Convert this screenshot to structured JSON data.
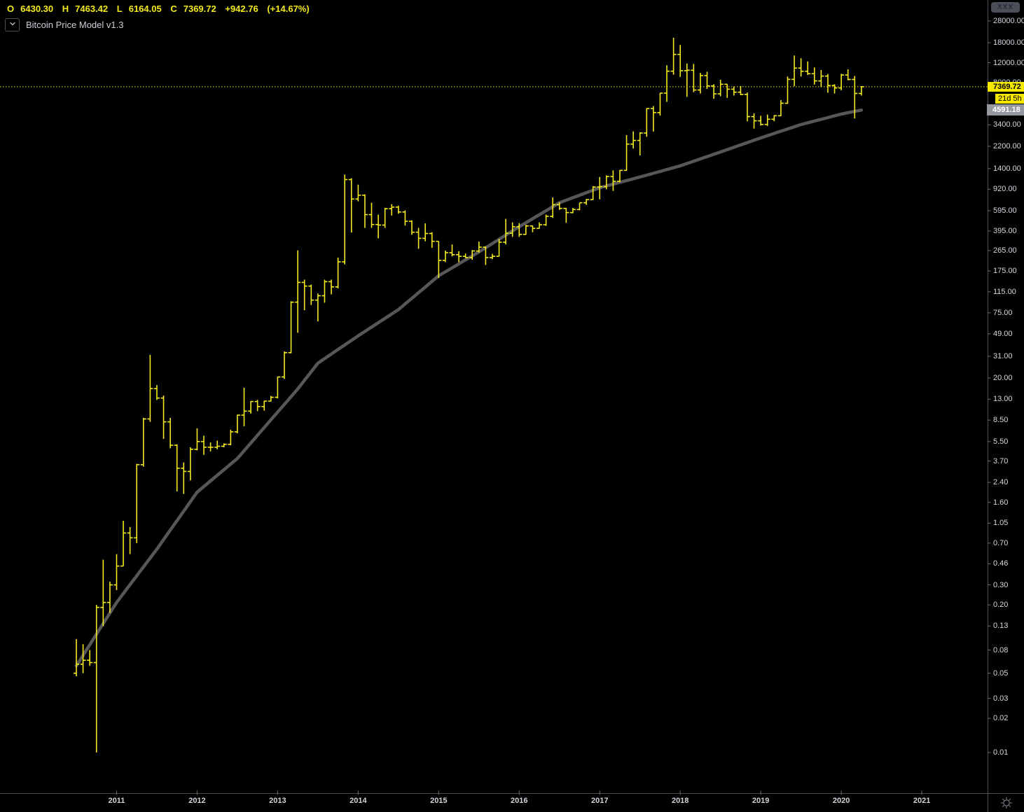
{
  "legend": {
    "open_label": "O",
    "open": "6430.30",
    "high_label": "H",
    "high": "7463.42",
    "low_label": "L",
    "low": "6164.05",
    "close_label": "C",
    "close": "7369.72",
    "change": "+942.76",
    "change_pct": "(+14.67%)"
  },
  "indicator": {
    "title": "Bitcoin Price Model v1.3"
  },
  "watermark": {
    "label": "XXX"
  },
  "price_axis": {
    "current_price_label": "7369.72",
    "countdown_label": "21d 5h",
    "model_price_label": "4591.18",
    "ticks": [
      {
        "label": "28000.00",
        "value": 28000
      },
      {
        "label": "18000.00",
        "value": 18000
      },
      {
        "label": "12000.00",
        "value": 12000
      },
      {
        "label": "8000.00",
        "value": 8000
      },
      {
        "label": "3400.00",
        "value": 3400
      },
      {
        "label": "2200.00",
        "value": 2200
      },
      {
        "label": "1400.00",
        "value": 1400
      },
      {
        "label": "920.00",
        "value": 920
      },
      {
        "label": "595.00",
        "value": 595
      },
      {
        "label": "395.00",
        "value": 395
      },
      {
        "label": "265.00",
        "value": 265
      },
      {
        "label": "175.00",
        "value": 175
      },
      {
        "label": "115.00",
        "value": 115
      },
      {
        "label": "75.00",
        "value": 75
      },
      {
        "label": "49.00",
        "value": 49
      },
      {
        "label": "31.00",
        "value": 31
      },
      {
        "label": "20.00",
        "value": 20
      },
      {
        "label": "13.00",
        "value": 13
      },
      {
        "label": "8.50",
        "value": 8.5
      },
      {
        "label": "5.50",
        "value": 5.5
      },
      {
        "label": "3.70",
        "value": 3.7
      },
      {
        "label": "2.40",
        "value": 2.4
      },
      {
        "label": "1.60",
        "value": 1.6
      },
      {
        "label": "1.05",
        "value": 1.05
      },
      {
        "label": "0.70",
        "value": 0.7
      },
      {
        "label": "0.46",
        "value": 0.46
      },
      {
        "label": "0.30",
        "value": 0.3
      },
      {
        "label": "0.20",
        "value": 0.2
      },
      {
        "label": "0.13",
        "value": 0.13
      },
      {
        "label": "0.08",
        "value": 0.08
      },
      {
        "label": "0.05",
        "value": 0.05
      },
      {
        "label": "0.03",
        "value": 0.03
      },
      {
        "label": "0.02",
        "value": 0.02
      },
      {
        "label": "0.01",
        "value": 0.01
      }
    ]
  },
  "time_axis": {
    "years": [
      "2011",
      "2012",
      "2013",
      "2014",
      "2015",
      "2016",
      "2017",
      "2018",
      "2019",
      "2020",
      "2021"
    ]
  },
  "colors": {
    "background": "#000000",
    "bar": "#f3ea1f",
    "current_price_line": "#f3ea1f",
    "model_line": "#57575a",
    "axis_line": "#4a4d55",
    "axis_text": "#d5d8df",
    "badge_yellow_bg": "#f6e900",
    "badge_gray_bg": "#95989f"
  },
  "chart_data": {
    "type": "ohlc-bar",
    "title": "Bitcoin Price Model v1.3",
    "y_scale": "log",
    "y_range": [
      0.005,
      40000
    ],
    "x_start_month": "2010-07",
    "x_end_month": "2020-04",
    "current_price": 7369.72,
    "current_bar_countdown": "21d 5h",
    "model_value_current": 4591.18,
    "bars_format": [
      "month",
      "open",
      "high",
      "low",
      "close"
    ],
    "bars": [
      [
        "2010-07",
        0.05,
        0.1,
        0.047,
        0.06
      ],
      [
        "2010-08",
        0.06,
        0.09,
        0.05,
        0.065
      ],
      [
        "2010-09",
        0.065,
        0.08,
        0.058,
        0.062
      ],
      [
        "2010-10",
        0.062,
        0.2,
        0.01,
        0.19
      ],
      [
        "2010-11",
        0.19,
        0.5,
        0.13,
        0.21
      ],
      [
        "2010-12",
        0.21,
        0.32,
        0.17,
        0.3
      ],
      [
        "2011-01",
        0.3,
        0.56,
        0.27,
        0.44
      ],
      [
        "2011-02",
        0.44,
        1.1,
        0.44,
        0.86
      ],
      [
        "2011-03",
        0.86,
        0.97,
        0.56,
        0.78
      ],
      [
        "2011-04",
        0.78,
        3.5,
        0.7,
        3.44
      ],
      [
        "2011-05",
        3.44,
        8.9,
        3.3,
        8.7
      ],
      [
        "2011-06",
        8.7,
        31.9,
        8.2,
        16.1
      ],
      [
        "2011-07",
        16.1,
        17.3,
        12.8,
        13.3
      ],
      [
        "2011-08",
        13.3,
        14.0,
        5.8,
        8.2
      ],
      [
        "2011-09",
        8.2,
        8.9,
        4.8,
        5.1
      ],
      [
        "2011-10",
        5.1,
        5.2,
        2.0,
        3.2
      ],
      [
        "2011-11",
        3.2,
        3.6,
        1.9,
        3.0
      ],
      [
        "2011-12",
        3.0,
        4.9,
        2.5,
        4.7
      ],
      [
        "2012-01",
        4.7,
        7.2,
        4.6,
        5.5
      ],
      [
        "2012-02",
        5.5,
        6.2,
        4.2,
        4.9
      ],
      [
        "2012-03",
        4.9,
        5.4,
        4.5,
        4.9
      ],
      [
        "2012-04",
        4.9,
        5.6,
        4.7,
        5.0
      ],
      [
        "2012-05",
        5.0,
        5.3,
        4.9,
        5.2
      ],
      [
        "2012-06",
        5.2,
        7.0,
        5.1,
        6.7
      ],
      [
        "2012-07",
        6.7,
        9.5,
        6.5,
        9.4
      ],
      [
        "2012-08",
        9.4,
        16.4,
        7.5,
        10.2
      ],
      [
        "2012-09",
        10.2,
        12.5,
        9.7,
        12.4
      ],
      [
        "2012-10",
        12.4,
        12.8,
        10.2,
        11.2
      ],
      [
        "2012-11",
        11.2,
        12.6,
        10.3,
        12.5
      ],
      [
        "2012-12",
        12.5,
        13.9,
        12.4,
        13.5
      ],
      [
        "2013-01",
        13.5,
        20.6,
        13.2,
        20.4
      ],
      [
        "2013-02",
        20.4,
        34.3,
        19.6,
        33.4
      ],
      [
        "2013-03",
        33.4,
        94.8,
        33.0,
        93.0
      ],
      [
        "2013-04",
        93.0,
        266.0,
        50.0,
        139.0
      ],
      [
        "2013-05",
        139.0,
        147.0,
        79.0,
        129.0
      ],
      [
        "2013-06",
        129.0,
        133.0,
        88.0,
        97.0
      ],
      [
        "2013-07",
        97.0,
        111.0,
        63.0,
        106.0
      ],
      [
        "2013-08",
        106.0,
        147.0,
        92.0,
        141.0
      ],
      [
        "2013-09",
        141.0,
        147.0,
        109.0,
        127.0
      ],
      [
        "2013-10",
        127.0,
        230.0,
        123.0,
        211.0
      ],
      [
        "2013-11",
        211.0,
        1240.0,
        200.0,
        1120.0
      ],
      [
        "2013-12",
        1120.0,
        1150.0,
        382.0,
        755.0
      ],
      [
        "2014-01",
        755.0,
        1010.0,
        720.0,
        815.0
      ],
      [
        "2014-02",
        815.0,
        830.0,
        420.0,
        550.0
      ],
      [
        "2014-03",
        550.0,
        700.0,
        420.0,
        450.0
      ],
      [
        "2014-04",
        450.0,
        550.0,
        340.0,
        445.0
      ],
      [
        "2014-05",
        445.0,
        630.0,
        420.0,
        620.0
      ],
      [
        "2014-06",
        620.0,
        680.0,
        540.0,
        640.0
      ],
      [
        "2014-07",
        640.0,
        660.0,
        560.0,
        580.0
      ],
      [
        "2014-08",
        580.0,
        600.0,
        440.0,
        480.0
      ],
      [
        "2014-09",
        480.0,
        490.0,
        365.0,
        385.0
      ],
      [
        "2014-10",
        385.0,
        420.0,
        275.0,
        340.0
      ],
      [
        "2014-11",
        340.0,
        460.0,
        320.0,
        375.0
      ],
      [
        "2014-12",
        375.0,
        385.0,
        280.0,
        320.0
      ],
      [
        "2015-01",
        320.0,
        320.0,
        152.0,
        217.0
      ],
      [
        "2015-02",
        217.0,
        265.0,
        210.0,
        254.0
      ],
      [
        "2015-03",
        254.0,
        300.0,
        236.0,
        244.0
      ],
      [
        "2015-04",
        244.0,
        262.0,
        210.0,
        236.0
      ],
      [
        "2015-05",
        236.0,
        250.0,
        228.0,
        230.0
      ],
      [
        "2015-06",
        230.0,
        268.0,
        220.0,
        263.0
      ],
      [
        "2015-07",
        263.0,
        318.0,
        255.0,
        284.0
      ],
      [
        "2015-08",
        284.0,
        288.0,
        198.0,
        230.0
      ],
      [
        "2015-09",
        230.0,
        248.0,
        223.0,
        236.0
      ],
      [
        "2015-10",
        236.0,
        335.0,
        235.0,
        314.0
      ],
      [
        "2015-11",
        314.0,
        504.0,
        300.0,
        377.0
      ],
      [
        "2015-12",
        377.0,
        470.0,
        350.0,
        430.0
      ],
      [
        "2016-01",
        430.0,
        463.0,
        350.0,
        368.0
      ],
      [
        "2016-02",
        368.0,
        447.0,
        366.0,
        437.0
      ],
      [
        "2016-03",
        437.0,
        440.0,
        385.0,
        416.0
      ],
      [
        "2016-04",
        416.0,
        470.0,
        414.0,
        448.0
      ],
      [
        "2016-05",
        448.0,
        550.0,
        438.0,
        531.0
      ],
      [
        "2016-06",
        531.0,
        780.0,
        515.0,
        673.0
      ],
      [
        "2016-07",
        673.0,
        705.0,
        605.0,
        624.0
      ],
      [
        "2016-08",
        624.0,
        630.0,
        465.0,
        573.0
      ],
      [
        "2016-09",
        573.0,
        630.0,
        565.0,
        610.0
      ],
      [
        "2016-10",
        610.0,
        700.0,
        600.0,
        700.0
      ],
      [
        "2016-11",
        700.0,
        755.0,
        670.0,
        745.0
      ],
      [
        "2016-12",
        745.0,
        980.0,
        740.0,
        963.0
      ],
      [
        "2017-01",
        963.0,
        1180.0,
        750.0,
        970.0
      ],
      [
        "2017-02",
        970.0,
        1220.0,
        920.0,
        1190.0
      ],
      [
        "2017-03",
        1190.0,
        1350.0,
        890.0,
        1080.0
      ],
      [
        "2017-04",
        1080.0,
        1360.0,
        1060.0,
        1350.0
      ],
      [
        "2017-05",
        1350.0,
        2760.0,
        1340.0,
        2300.0
      ],
      [
        "2017-06",
        2300.0,
        2980.0,
        2100.0,
        2480.0
      ],
      [
        "2017-07",
        2480.0,
        2930.0,
        1830.0,
        2880.0
      ],
      [
        "2017-08",
        2880.0,
        4765.0,
        2670.0,
        4735.0
      ],
      [
        "2017-09",
        4735.0,
        4980.0,
        2970.0,
        4360.0
      ],
      [
        "2017-10",
        4360.0,
        6500.0,
        4100.0,
        6470.0
      ],
      [
        "2017-11",
        6470.0,
        11400.0,
        5420.0,
        10100.0
      ],
      [
        "2017-12",
        10100.0,
        19900.0,
        9400.0,
        14200.0
      ],
      [
        "2018-01",
        14200.0,
        17200.0,
        9000.0,
        10200.0
      ],
      [
        "2018-02",
        10200.0,
        11800.0,
        6000.0,
        10300.0
      ],
      [
        "2018-03",
        10300.0,
        11700.0,
        6600.0,
        6900.0
      ],
      [
        "2018-04",
        6900.0,
        9760.0,
        6430.0,
        9240.0
      ],
      [
        "2018-05",
        9240.0,
        9990.0,
        7040.0,
        7490.0
      ],
      [
        "2018-06",
        7490.0,
        7750.0,
        5770.0,
        6380.0
      ],
      [
        "2018-07",
        6380.0,
        8500.0,
        6070.0,
        7750.0
      ],
      [
        "2018-08",
        7750.0,
        7760.0,
        5880.0,
        7010.0
      ],
      [
        "2018-09",
        7010.0,
        7410.0,
        6160.0,
        6600.0
      ],
      [
        "2018-10",
        6600.0,
        7470.0,
        6200.0,
        6300.0
      ],
      [
        "2018-11",
        6300.0,
        6550.0,
        3650.0,
        4020.0
      ],
      [
        "2018-12",
        4020.0,
        4300.0,
        3150.0,
        3690.0
      ],
      [
        "2019-01",
        3690.0,
        4090.0,
        3350.0,
        3430.0
      ],
      [
        "2019-02",
        3430.0,
        4190.0,
        3330.0,
        3810.0
      ],
      [
        "2019-03",
        3810.0,
        4140.0,
        3660.0,
        4090.0
      ],
      [
        "2019-04",
        4090.0,
        5620.0,
        4060.0,
        5270.0
      ],
      [
        "2019-05",
        5270.0,
        9070.0,
        5210.0,
        8560.0
      ],
      [
        "2019-06",
        8560.0,
        13880.0,
        7450.0,
        10760.0
      ],
      [
        "2019-07",
        10760.0,
        13130.0,
        9070.0,
        10080.0
      ],
      [
        "2019-08",
        10080.0,
        12320.0,
        9360.0,
        9600.0
      ],
      [
        "2019-09",
        9600.0,
        10900.0,
        7700.0,
        8290.0
      ],
      [
        "2019-10",
        8290.0,
        10350.0,
        7300.0,
        9150.0
      ],
      [
        "2019-11",
        9150.0,
        9550.0,
        6520.0,
        7550.0
      ],
      [
        "2019-12",
        7550.0,
        7750.0,
        6420.0,
        7190.0
      ],
      [
        "2020-01",
        7190.0,
        9570.0,
        6850.0,
        9350.0
      ],
      [
        "2020-02",
        9350.0,
        10500.0,
        8400.0,
        8540.0
      ],
      [
        "2020-03",
        8540.0,
        9170.0,
        3870.0,
        6430.0
      ],
      [
        "2020-04",
        6430.3,
        7463.42,
        6164.05,
        7369.72
      ]
    ],
    "model_line": {
      "name": "Bitcoin Price Model v1.3",
      "points_format": [
        "months_since_2010_07",
        "model_price"
      ],
      "points": [
        [
          0,
          0.058
        ],
        [
          6,
          0.21
        ],
        [
          12,
          0.62
        ],
        [
          18,
          1.97
        ],
        [
          24,
          3.9
        ],
        [
          30,
          10
        ],
        [
          33,
          16
        ],
        [
          36,
          27
        ],
        [
          42,
          47
        ],
        [
          48,
          80
        ],
        [
          54,
          159
        ],
        [
          60,
          258
        ],
        [
          66,
          430
        ],
        [
          72,
          700
        ],
        [
          78,
          950
        ],
        [
          84,
          1180
        ],
        [
          90,
          1480
        ],
        [
          96,
          1960
        ],
        [
          102,
          2610
        ],
        [
          108,
          3420
        ],
        [
          114,
          4230
        ],
        [
          117,
          4591.18
        ]
      ]
    }
  }
}
